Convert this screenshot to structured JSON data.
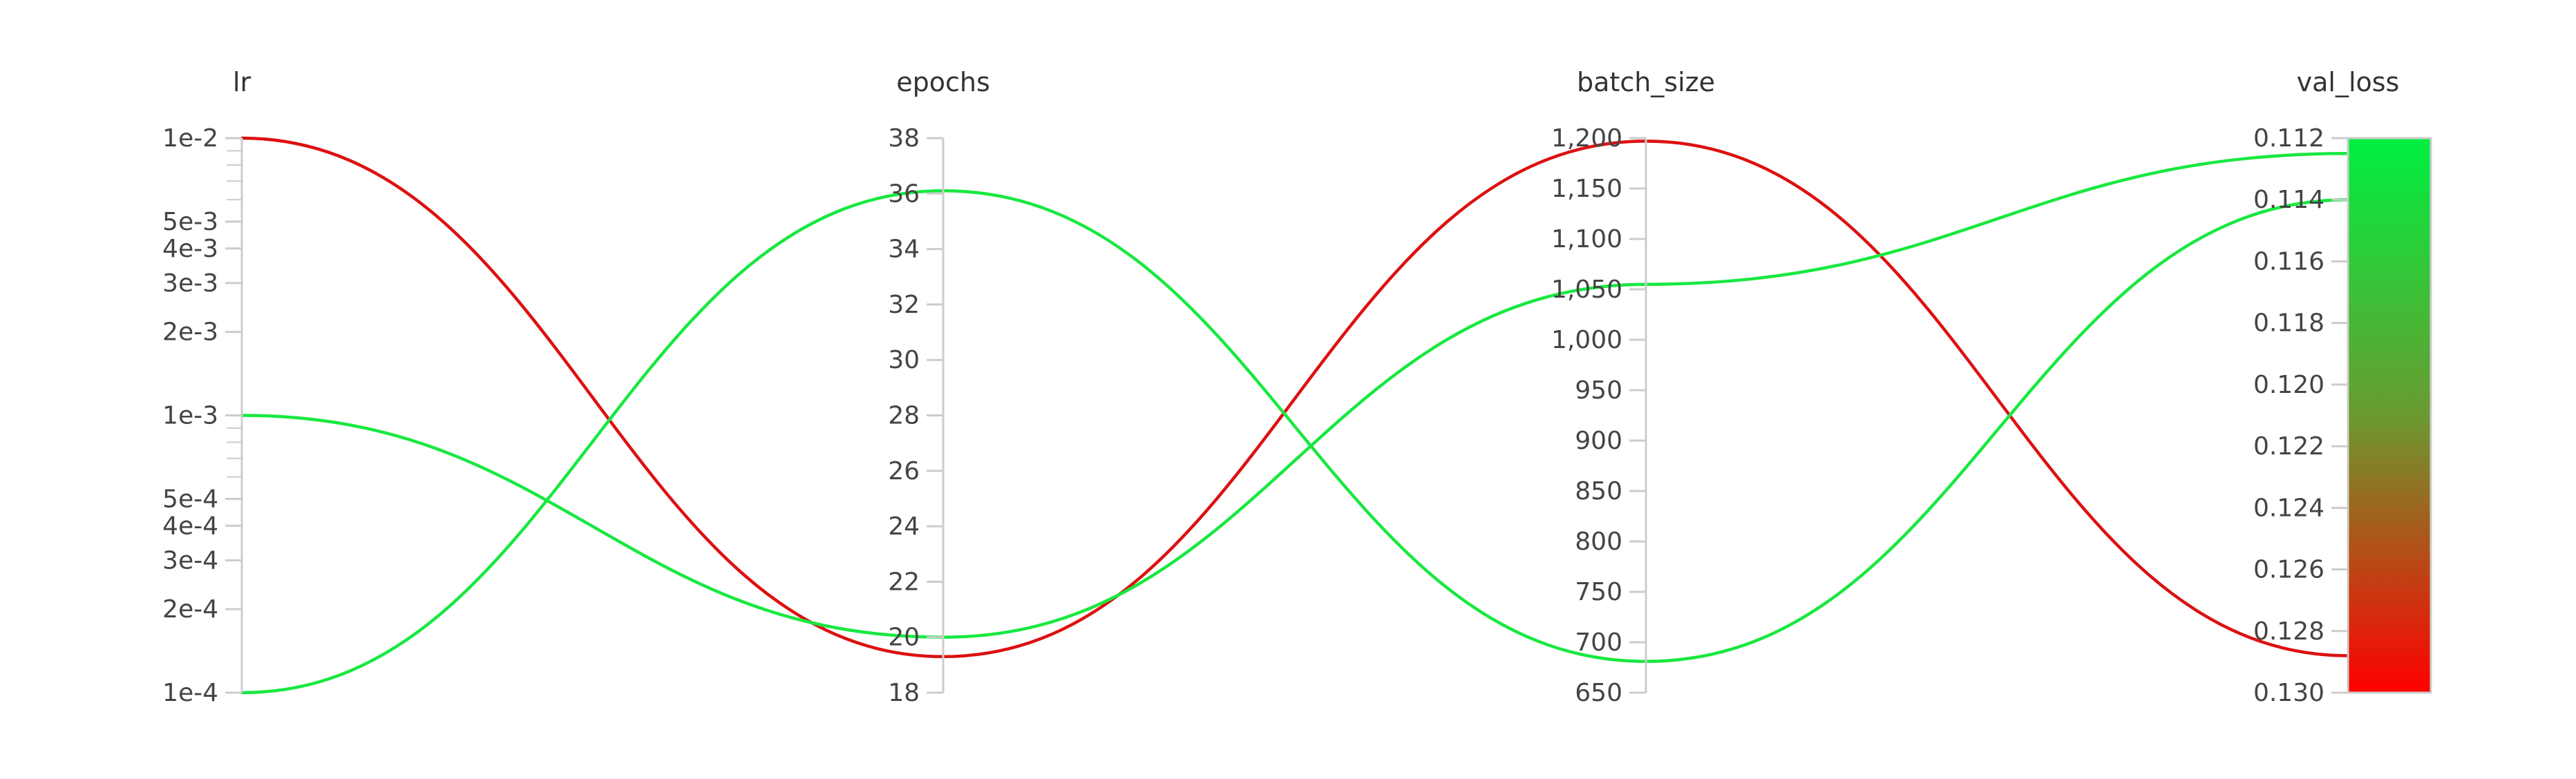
{
  "chart_data": {
    "type": "parallel-coordinates",
    "axes": [
      {
        "key": "lr",
        "label": "lr",
        "scale": "log",
        "range": [
          0.0001,
          0.01
        ],
        "ticks": [
          {
            "value": 0.01,
            "label": "1e-2"
          },
          {
            "value": 0.005,
            "label": "5e-3"
          },
          {
            "value": 0.004,
            "label": "4e-3"
          },
          {
            "value": 0.003,
            "label": "3e-3"
          },
          {
            "value": 0.002,
            "label": "2e-3"
          },
          {
            "value": 0.001,
            "label": "1e-3"
          },
          {
            "value": 0.0005,
            "label": "5e-4"
          },
          {
            "value": 0.0004,
            "label": "4e-4"
          },
          {
            "value": 0.0003,
            "label": "3e-4"
          },
          {
            "value": 0.0002,
            "label": "2e-4"
          },
          {
            "value": 0.0001,
            "label": "1e-4"
          }
        ],
        "minor_ticks": [
          0.009,
          0.008,
          0.007,
          0.006,
          0.0009,
          0.0008,
          0.0007,
          0.0006
        ]
      },
      {
        "key": "epochs",
        "label": "epochs",
        "scale": "linear",
        "range": [
          18,
          38
        ],
        "ticks": [
          {
            "value": 38,
            "label": "38"
          },
          {
            "value": 36,
            "label": "36"
          },
          {
            "value": 34,
            "label": "34"
          },
          {
            "value": 32,
            "label": "32"
          },
          {
            "value": 30,
            "label": "30"
          },
          {
            "value": 28,
            "label": "28"
          },
          {
            "value": 26,
            "label": "26"
          },
          {
            "value": 24,
            "label": "24"
          },
          {
            "value": 22,
            "label": "22"
          },
          {
            "value": 20,
            "label": "20"
          },
          {
            "value": 18,
            "label": "18"
          }
        ]
      },
      {
        "key": "batch_size",
        "label": "batch_size",
        "scale": "linear",
        "range": [
          650,
          1200
        ],
        "ticks": [
          {
            "value": 1200,
            "label": "1,200"
          },
          {
            "value": 1150,
            "label": "1,150"
          },
          {
            "value": 1100,
            "label": "1,100"
          },
          {
            "value": 1050,
            "label": "1,050"
          },
          {
            "value": 1000,
            "label": "1,000"
          },
          {
            "value": 950,
            "label": "950"
          },
          {
            "value": 900,
            "label": "900"
          },
          {
            "value": 850,
            "label": "850"
          },
          {
            "value": 800,
            "label": "800"
          },
          {
            "value": 750,
            "label": "750"
          },
          {
            "value": 700,
            "label": "700"
          },
          {
            "value": 650,
            "label": "650"
          }
        ]
      },
      {
        "key": "val_loss",
        "label": "val_loss",
        "scale": "linear",
        "inverted": true,
        "range": [
          0.112,
          0.13
        ],
        "ticks": [
          {
            "value": 0.112,
            "label": "0.112"
          },
          {
            "value": 0.114,
            "label": "0.114"
          },
          {
            "value": 0.116,
            "label": "0.116"
          },
          {
            "value": 0.118,
            "label": "0.118"
          },
          {
            "value": 0.12,
            "label": "0.120"
          },
          {
            "value": 0.122,
            "label": "0.122"
          },
          {
            "value": 0.124,
            "label": "0.124"
          },
          {
            "value": 0.126,
            "label": "0.126"
          },
          {
            "value": 0.128,
            "label": "0.128"
          },
          {
            "value": 0.13,
            "label": "0.130"
          }
        ],
        "colorbar": {
          "top_color": "#00f040",
          "mid_color": "#6a9a30",
          "bottom_color": "#ff0000"
        }
      }
    ],
    "runs": [
      {
        "lr": 0.01,
        "epochs": 19.3,
        "batch_size": 1197,
        "val_loss": 0.1288,
        "color": "#dd1010"
      },
      {
        "lr": 0.001,
        "epochs": 20.0,
        "batch_size": 1055,
        "val_loss": 0.1125,
        "color": "#18e840"
      },
      {
        "lr": 0.0001,
        "epochs": 36.1,
        "batch_size": 681,
        "val_loss": 0.114,
        "color": "#18e840"
      }
    ],
    "grid": false,
    "legend": "none"
  }
}
